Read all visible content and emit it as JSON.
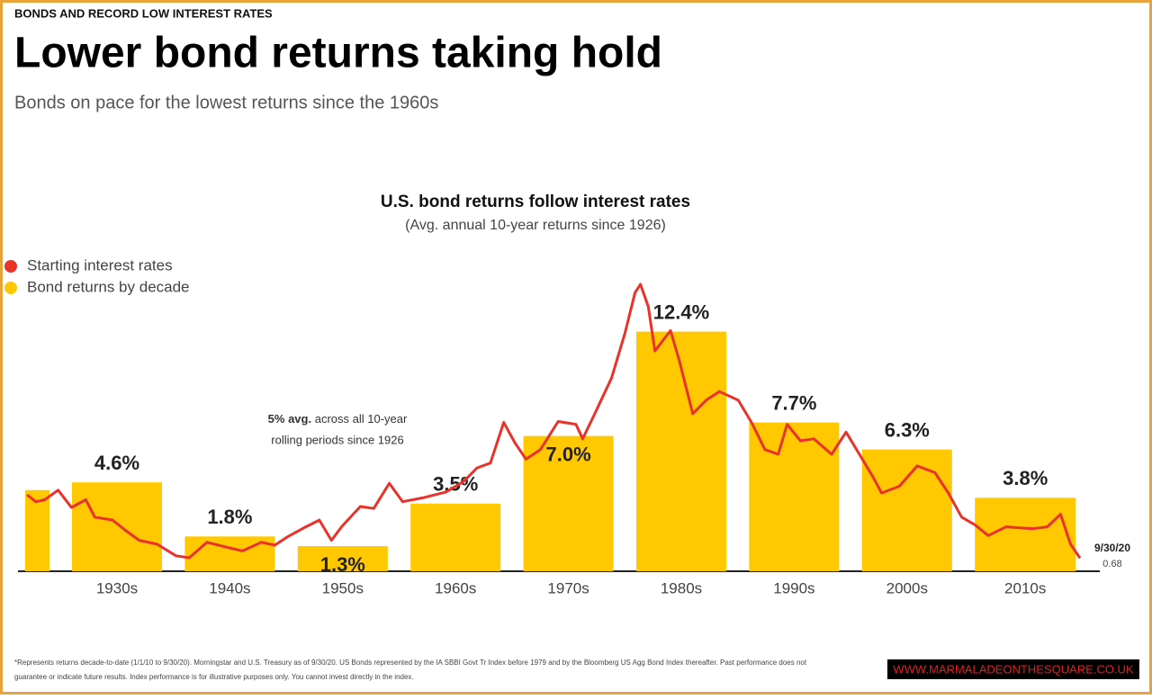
{
  "header": {
    "kicker": "BONDS AND RECORD LOW INTEREST RATES",
    "title": "Lower bond returns taking hold",
    "subtitle": "Bonds on pace for the lowest returns since the 1960s"
  },
  "chart_data": [
    {
      "type": "bar",
      "title": "U.S. bond returns follow interest rates",
      "subtitle": "(Avg. annual 10-year returns since 1926)",
      "categories": [
        null,
        "1930s",
        "1940s",
        "1950s",
        "1960s",
        "1970s",
        "1980s",
        "1990s",
        "2000s",
        "2010s"
      ],
      "series": [
        {
          "name": "Bond returns by decade",
          "color": "#ffc800",
          "values": [
            4.2,
            4.6,
            1.8,
            1.3,
            3.5,
            7.0,
            12.4,
            7.7,
            6.3,
            3.8
          ],
          "value_labels": [
            null,
            "4.6%",
            "1.8%",
            "1.3%",
            "3.5%",
            "7.0%",
            "12.4%",
            "7.7%",
            "6.3%",
            "3.8%"
          ]
        }
      ],
      "ylim": [
        0,
        15.5
      ],
      "annotations": [
        "5% avg.",
        "across all 10-year",
        "rolling periods since 1926"
      ]
    },
    {
      "type": "line",
      "series": [
        {
          "name": "Starting interest rates",
          "color": "#e8322a",
          "x": [
            1926,
            1926.8,
            1927.6,
            1928.8,
            1930,
            1931.3,
            1932.1,
            1933.7,
            1934.9,
            1936.1,
            1937.7,
            1939.4,
            1940.6,
            1942.2,
            1943.9,
            1945.4,
            1947.1,
            1948.3,
            1949.5,
            1951.1,
            1952.3,
            1953.4,
            1954.3,
            1956,
            1957.2,
            1958.6,
            1959.8,
            1961.6,
            1963.7,
            1965.3,
            1966.5,
            1967.7,
            1968.9,
            1969.9,
            1970.9,
            1972.2,
            1973.8,
            1975.4,
            1976,
            1977,
            1978.6,
            1979.8,
            1980.7,
            1981.2,
            1981.9,
            1982.5,
            1983.1,
            1983.9,
            1984.7,
            1985.9,
            1987.1,
            1988.3,
            1990,
            1991.2,
            1992.4,
            1993.6,
            1994.4,
            1995.6,
            1996.8,
            1998.4,
            1999.7,
            2000.9,
            2002.1,
            2002.9,
            2004.5,
            2006.1,
            2007.7,
            2008.9,
            2010.1,
            2011.3,
            2012.5,
            2014.1,
            2016.5,
            2017.8,
            2019,
            2019.9,
            2020.75
          ],
          "values": [
            3.95,
            3.6,
            3.7,
            4.2,
            3.3,
            3.7,
            2.8,
            2.65,
            2.1,
            1.6,
            1.4,
            0.8,
            0.7,
            1.5,
            1.25,
            1.05,
            1.5,
            1.35,
            1.8,
            2.3,
            2.65,
            1.6,
            2.3,
            3.35,
            3.25,
            4.55,
            3.6,
            3.8,
            4.1,
            4.65,
            5.35,
            5.6,
            7.7,
            6.65,
            5.8,
            6.3,
            7.75,
            7.6,
            6.85,
            8.05,
            10,
            12.3,
            14.4,
            14.85,
            13.7,
            11.4,
            11.85,
            12.45,
            10.9,
            8.15,
            8.85,
            9.3,
            8.85,
            7.7,
            6.3,
            6.05,
            7.6,
            6.75,
            6.85,
            6.05,
            7.2,
            6.05,
            4.9,
            4.05,
            4.4,
            5.45,
            5.1,
            4.05,
            2.8,
            2.4,
            1.85,
            2.3,
            2.2,
            2.3,
            2.95,
            1.4,
            0.68
          ]
        }
      ],
      "xlim": [
        1926,
        2020.75
      ],
      "ylim": [
        0,
        15.5
      ],
      "annotations": [
        "9/30/20"
      ]
    }
  ],
  "footnote": [
    "*Represents returns decade-to-date (1/1/10 to 9/30/20). Morningstar and U.S. Treasury as of 9/30/20. US Bonds represented by the IA SBBI Govt Tr Index before 1979 and by the Bloomberg US Agg Bond Index thereafter. Past performance does not",
    "guarantee or indicate future results. Index performance is for illustrative purposes only. You cannot invest directly in the index."
  ],
  "watermark": "WWW.MARMALADEONTHESQUARE.CO.UK"
}
